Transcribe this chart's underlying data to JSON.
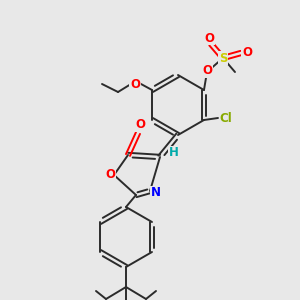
{
  "background_color": "#e8e8e8",
  "bond_color": "#2b2b2b",
  "atom_colors": {
    "O": "#ff0000",
    "N": "#0000ff",
    "S": "#cccc00",
    "Cl": "#88aa00",
    "H": "#00aaaa",
    "C": "#2b2b2b"
  },
  "figsize": [
    3.0,
    3.0
  ],
  "dpi": 100
}
